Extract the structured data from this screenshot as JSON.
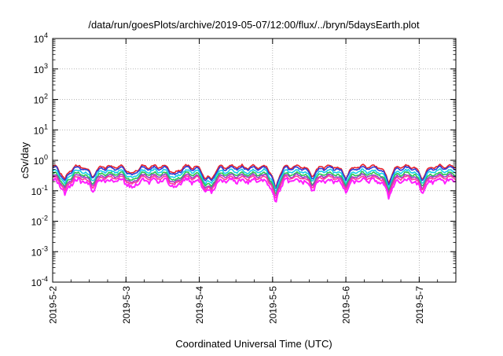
{
  "chart_data": {
    "type": "line",
    "title": "/data/run/goesPlots/archive/2019-05-07/12:00/flux/../bryn/5daysEarth.plot",
    "xlabel": "Coordinated Universal Time (UTC)",
    "ylabel": "cSv/day",
    "yscale": "log",
    "ylim": [
      0.0001,
      10000
    ],
    "ytick_mantissa": "10",
    "ytick_exponents": [
      "-4",
      "-3",
      "-2",
      "-1",
      "0",
      "1",
      "2",
      "3",
      "4"
    ],
    "xlim": [
      "2019-05-02T00:00",
      "2019-05-07T12:00"
    ],
    "xticks": [
      "2019-5-2",
      "2019-5-3",
      "2019-5-4",
      "2019-5-5",
      "2019-5-6",
      "2019-5-7"
    ],
    "grid": true,
    "legend": "none",
    "series": [
      {
        "color": "#e8202a",
        "base": 0.62
      },
      {
        "color": "#2a3fd8",
        "base": 0.55
      },
      {
        "color": "#14d0e8",
        "base": 0.44
      },
      {
        "color": "#28c850",
        "base": 0.36
      },
      {
        "color": "#9a3ec8",
        "base": 0.31
      },
      {
        "color": "#ff3a9a",
        "base": 0.27
      },
      {
        "color": "#ff20ff",
        "base": 0.22
      }
    ],
    "dips": [
      {
        "t": "2019-05-02T04:00",
        "factor": 0.35
      },
      {
        "t": "2019-05-02T13:00",
        "factor": 0.5
      },
      {
        "t": "2019-05-03T02:00",
        "factor": 0.55
      },
      {
        "t": "2019-05-03T16:00",
        "factor": 0.55
      },
      {
        "t": "2019-05-04T02:00",
        "factor": 0.5
      },
      {
        "t": "2019-05-04T04:00",
        "factor": 0.45
      },
      {
        "t": "2019-05-05T01:00",
        "factor": 0.15
      },
      {
        "t": "2019-05-05T13:00",
        "factor": 0.5
      },
      {
        "t": "2019-05-06T00:00",
        "factor": 0.45
      },
      {
        "t": "2019-05-06T14:00",
        "factor": 0.3
      },
      {
        "t": "2019-05-07T01:00",
        "factor": 0.4
      }
    ]
  }
}
